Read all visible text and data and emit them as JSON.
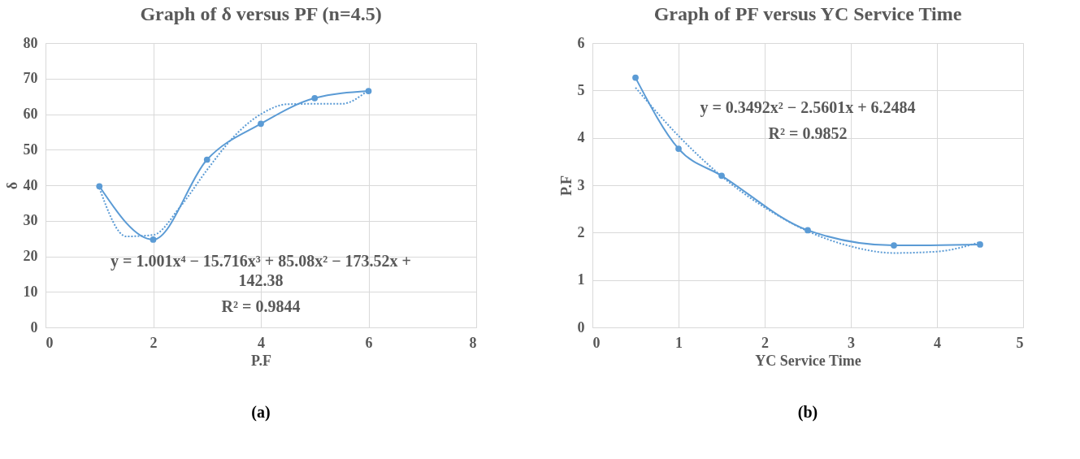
{
  "chart_data": [
    {
      "type": "line",
      "title": "Graph of δ versus PF (n=4.5)",
      "xlabel": "P.F",
      "ylabel": "δ",
      "xlim": [
        0,
        8
      ],
      "xticks": [
        0,
        2,
        4,
        6,
        8
      ],
      "ylim": [
        0,
        80
      ],
      "yticks": [
        0,
        10,
        20,
        30,
        40,
        50,
        60,
        70,
        80
      ],
      "grid": true,
      "series": [
        {
          "color": "#5b9bd5",
          "marker": "circle",
          "line_style": "solid",
          "x": [
            1,
            2,
            3,
            4,
            5,
            6
          ],
          "values": [
            39.7,
            24.7,
            47.2,
            57.3,
            64.5,
            66.5
          ]
        },
        {
          "color": "#5b9bd5",
          "marker": "none",
          "line_style": "dotted",
          "x": [
            1,
            1.5,
            2,
            2.5,
            3,
            3.5,
            4,
            4.5,
            5,
            5.5,
            6
          ],
          "values": [
            39.2,
            25.6,
            26.0,
            33.9,
            44.3,
            53.7,
            60.0,
            62.8,
            62.9,
            62.9,
            66.8
          ]
        }
      ],
      "annotations": [
        "y = 1.001x⁴ − 15.716x³ + 85.08x² − 173.52x + 142.38",
        "R² = 0.9844",
        "(a)"
      ]
    },
    {
      "type": "line",
      "title": "Graph of PF versus YC Service Time",
      "xlabel": "YC Service Time",
      "ylabel": "P.F",
      "xlim": [
        0,
        5
      ],
      "xticks": [
        0,
        1,
        2,
        3,
        4,
        5
      ],
      "ylim": [
        0,
        6
      ],
      "yticks": [
        0,
        1,
        2,
        3,
        4,
        5,
        6
      ],
      "grid": true,
      "series": [
        {
          "color": "#5b9bd5",
          "marker": "circle",
          "line_style": "solid",
          "x": [
            0.5,
            1,
            1.5,
            2.5,
            3.5,
            4.5
          ],
          "values": [
            5.27,
            3.77,
            3.2,
            2.05,
            1.73,
            1.75
          ]
        },
        {
          "color": "#5b9bd5",
          "marker": "none",
          "line_style": "dotted",
          "x": [
            0.5,
            1,
            1.5,
            2,
            2.5,
            3,
            3.5,
            4,
            4.5
          ],
          "values": [
            5.06,
            4.04,
            3.19,
            2.53,
            2.03,
            1.71,
            1.57,
            1.6,
            1.8
          ]
        }
      ],
      "annotations": [
        "y = 0.3492x² − 2.5601x + 6.2484",
        "R² = 0.9852",
        "(b)"
      ]
    }
  ]
}
